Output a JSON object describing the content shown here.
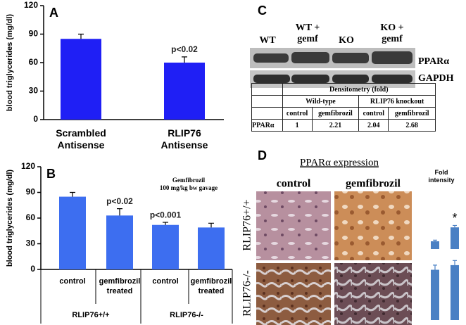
{
  "chart_data": [
    {
      "type": "bar",
      "panel": "A",
      "ylabel": "blood triglycerides (mg/dl)",
      "categories": [
        "Scrambled Antisense",
        "RLIP76 Antisense"
      ],
      "values": [
        85,
        60
      ],
      "errors": [
        5,
        6
      ],
      "annotations": [
        null,
        "p<0.02"
      ],
      "color": "#1f1ff5",
      "ylim": [
        0,
        120
      ],
      "yticks": [
        0,
        30,
        60,
        90,
        120
      ]
    },
    {
      "type": "bar",
      "panel": "B",
      "ylabel": "blood triglycerides (mg/dl)",
      "categories": [
        "control",
        "gemfibrozil treated",
        "control",
        "gemfibrozil treated"
      ],
      "values": [
        85,
        63,
        52,
        49
      ],
      "errors": [
        5,
        8,
        3,
        5
      ],
      "annotations": [
        null,
        "p<0.02",
        "p<0.001",
        null
      ],
      "groups": [
        "RLIP76+/+",
        "RLIP76-/-"
      ],
      "note": [
        "Gemfibrozil",
        "100 mg/kg bw gavage"
      ],
      "color": "#3d6ef0",
      "ylim": [
        0,
        120
      ],
      "yticks": [
        0,
        30,
        60,
        90,
        120
      ]
    },
    {
      "type": "bar",
      "panel": "D",
      "title": "PPARα expression",
      "value_label": "Fold intensity",
      "categories": [
        "control",
        "gemfibrozil"
      ],
      "ylim": [
        0,
        8
      ],
      "series": [
        {
          "name": "RLIP76+/+",
          "color": "#4a80c4",
          "values": [
            1,
            2.8
          ],
          "errors": [
            0.15,
            0.25
          ],
          "annotations": [
            null,
            "*"
          ]
        },
        {
          "name": "RLIP76-/-",
          "color": "#4a80c4",
          "values": [
            6.5,
            7.1
          ],
          "errors": [
            0.6,
            0.6
          ],
          "annotations": [
            null,
            null
          ]
        }
      ]
    }
  ],
  "panel_c": {
    "panel": "C",
    "lanes": [
      "WT",
      "WT + gemf",
      "KO",
      "KO + gemf"
    ],
    "bands": [
      "PPARα",
      "GAPDH"
    ],
    "table": {
      "title": "Densitometry (fold)",
      "groups": [
        "Wild-type",
        "RLIP76 knockout"
      ],
      "columns": [
        "control",
        "gemfibrozil",
        "control",
        "gemfibrozil"
      ],
      "rows": [
        {
          "label": "PPARα",
          "cells": [
            1,
            2.21,
            2.04,
            2.68
          ]
        }
      ]
    }
  }
}
